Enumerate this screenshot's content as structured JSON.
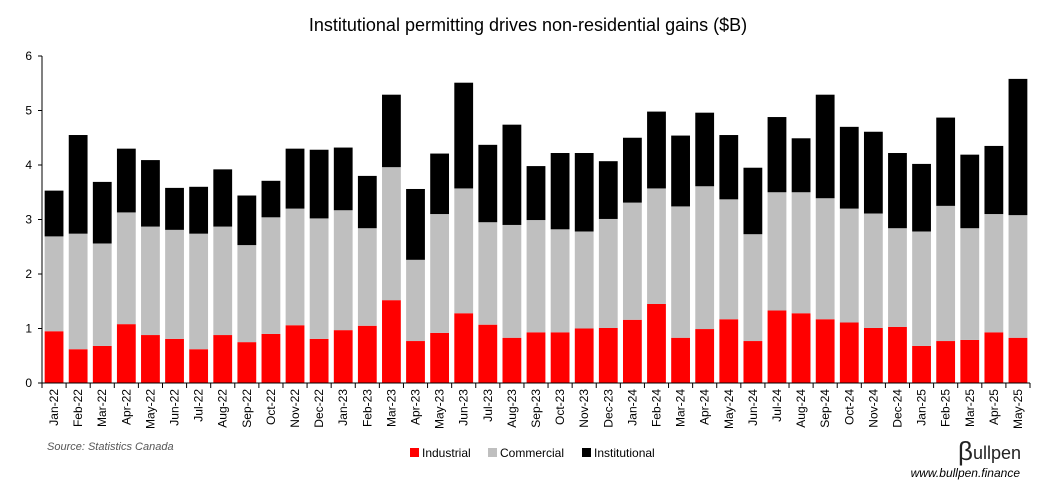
{
  "chart_data": {
    "type": "bar",
    "stacked": true,
    "title": "Institutional permitting drives non-residential gains ($B)",
    "xlabel": "",
    "ylabel": "",
    "ylim": [
      0,
      6
    ],
    "yticks": [
      "0",
      "1",
      "2",
      "3",
      "4",
      "5",
      "6"
    ],
    "grid": false,
    "legend_position": "bottom",
    "categories": [
      "Jan-22",
      "Feb-22",
      "Mar-22",
      "Apr-22",
      "May-22",
      "Jun-22",
      "Jul-22",
      "Aug-22",
      "Sep-22",
      "Oct-22",
      "Nov-22",
      "Dec-22",
      "Jan-23",
      "Feb-23",
      "Mar-23",
      "Apr-23",
      "May-23",
      "Jun-23",
      "Jul-23",
      "Aug-23",
      "Sep-23",
      "Oct-23",
      "Nov-23",
      "Dec-23",
      "Jan-24",
      "Feb-24",
      "Mar-24",
      "Apr-24",
      "May-24",
      "Jun-24",
      "Jul-24",
      "Aug-24",
      "Sep-24",
      "Oct-24",
      "Nov-24",
      "Dec-24",
      "Jan-25",
      "Feb-25",
      "Mar-25",
      "Apr-25",
      "May-25"
    ],
    "series": [
      {
        "name": "Industrial",
        "color": "#ff0000",
        "values": [
          0.95,
          0.62,
          0.68,
          1.08,
          0.88,
          0.81,
          0.62,
          0.88,
          0.75,
          0.9,
          1.06,
          0.81,
          0.97,
          1.05,
          1.52,
          0.77,
          0.92,
          1.28,
          1.07,
          0.83,
          0.93,
          0.93,
          1.0,
          1.01,
          1.16,
          1.45,
          0.83,
          0.99,
          1.17,
          0.77,
          1.33,
          1.28,
          1.17,
          1.11,
          1.01,
          1.03,
          0.68,
          0.77,
          0.79,
          0.93,
          0.83
        ]
      },
      {
        "name": "Commercial",
        "color": "#bfbfbf",
        "values": [
          1.74,
          2.12,
          1.88,
          2.05,
          1.99,
          2.0,
          2.12,
          1.99,
          1.78,
          2.14,
          2.14,
          2.21,
          2.2,
          1.79,
          2.44,
          1.49,
          2.18,
          2.29,
          1.88,
          2.07,
          2.06,
          1.89,
          1.78,
          2.0,
          2.15,
          2.12,
          2.41,
          2.62,
          2.2,
          1.96,
          2.17,
          2.22,
          2.22,
          2.09,
          2.1,
          1.81,
          2.1,
          2.48,
          2.05,
          2.17,
          2.25
        ]
      },
      {
        "name": "Institutional",
        "color": "#000000",
        "values": [
          0.84,
          1.81,
          1.13,
          1.17,
          1.22,
          0.77,
          0.86,
          1.05,
          0.91,
          0.67,
          1.1,
          1.26,
          1.15,
          0.96,
          1.33,
          1.3,
          1.11,
          1.94,
          1.42,
          1.84,
          0.99,
          1.4,
          1.44,
          1.06,
          1.19,
          1.41,
          1.3,
          1.35,
          1.18,
          1.22,
          1.38,
          0.99,
          1.9,
          1.5,
          1.5,
          1.38,
          1.24,
          1.62,
          1.35,
          1.25,
          2.5
        ]
      }
    ]
  },
  "footer": {
    "source": "Source: Statistics Canada",
    "brand_symbol": "β",
    "brand_name": "ullpen",
    "brand_url": "www.bullpen.finance"
  }
}
